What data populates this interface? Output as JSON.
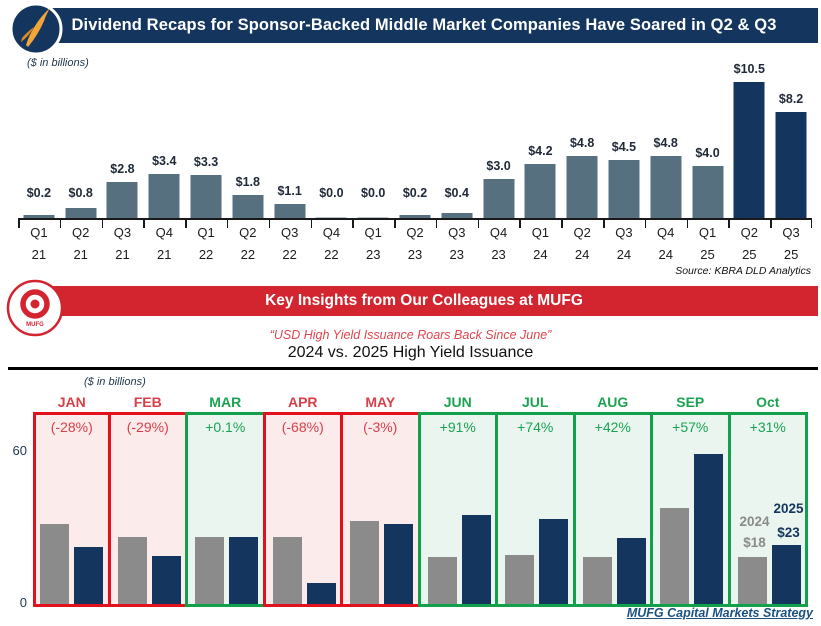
{
  "header": {
    "title": "Dividend Recaps for Sponsor-Backed Middle Market Companies Have Soared in Q2 & Q3"
  },
  "insights": {
    "banner_title": "Key Insights from Our Colleagues at MUFG",
    "quote": "“USD High Yield Issuance Roars Back Since June”",
    "footer": "MUFG Capital Markets Strategy",
    "logo_text": "MUFG"
  },
  "colors": {
    "navy": "#14365e",
    "slate": "#57707f",
    "gray_2024": "#8b8b8b",
    "banner_red": "#d2252f"
  },
  "chart_data": [
    {
      "type": "bar",
      "title": "Dividend Recaps for Sponsor-Backed Middle Market Companies Have Soared in Q2 & Q3",
      "units_label": "($ in billions)",
      "categories": [
        "Q1 21",
        "Q2 21",
        "Q3 21",
        "Q4 21",
        "Q1 22",
        "Q2 22",
        "Q3 22",
        "Q4 22",
        "Q1 23",
        "Q2 23",
        "Q3 23",
        "Q4 23",
        "Q1 24",
        "Q2 24",
        "Q3 24",
        "Q4 24",
        "Q1 25",
        "Q2 25",
        "Q3 25"
      ],
      "values": [
        0.2,
        0.8,
        2.8,
        3.4,
        3.3,
        1.8,
        1.1,
        0.0,
        0.0,
        0.2,
        0.4,
        3.0,
        4.2,
        4.8,
        4.5,
        4.8,
        4.0,
        10.5,
        8.2
      ],
      "ylim": [
        0,
        10.5
      ],
      "bar_color": "#57707f",
      "highlight_color": "#14365e",
      "highlight_indices": [
        17,
        18
      ],
      "grid": false,
      "source": "Source: KBRA DLD Analytics"
    },
    {
      "type": "grouped-bar",
      "title": "2024 vs. 2025 High Yield Issuance",
      "units_label": "($ in billions)",
      "categories": [
        "JAN",
        "FEB",
        "MAR",
        "APR",
        "MAY",
        "JUN",
        "JUL",
        "AUG",
        "SEP",
        "Oct"
      ],
      "pct_change": [
        "(-28%)",
        "(-29%)",
        "+0.1%",
        "(-68%)",
        "(-3%)",
        "+91%",
        "+74%",
        "+42%",
        "+57%",
        "+31%"
      ],
      "direction": [
        "down",
        "down",
        "up",
        "down",
        "down",
        "up",
        "up",
        "up",
        "up",
        "up"
      ],
      "series": [
        {
          "name": "2024",
          "color": "#8b8b8b",
          "values": [
            31,
            26,
            26,
            26,
            32,
            18,
            19,
            18,
            37,
            18
          ]
        },
        {
          "name": "2025",
          "color": "#14365e",
          "values": [
            22,
            18.5,
            26,
            8.3,
            31,
            34.4,
            33,
            25.6,
            58,
            23
          ]
        }
      ],
      "ylim": [
        0,
        60
      ],
      "yticks": [
        60,
        0
      ],
      "grid": false,
      "legend_position": "inside-last-box",
      "annotations": {
        "series_2024_label": "2024",
        "value_2024_label": "$18",
        "series_2025_label": "2025",
        "value_2025_label": "$23"
      },
      "box_styles": {
        "up_border": "#13a04b",
        "up_fill": "#e9f5ee",
        "up_text": "#1ba352",
        "down_border": "#e1121c",
        "down_fill": "#fcebeb",
        "down_text": "#d8404a"
      }
    }
  ]
}
